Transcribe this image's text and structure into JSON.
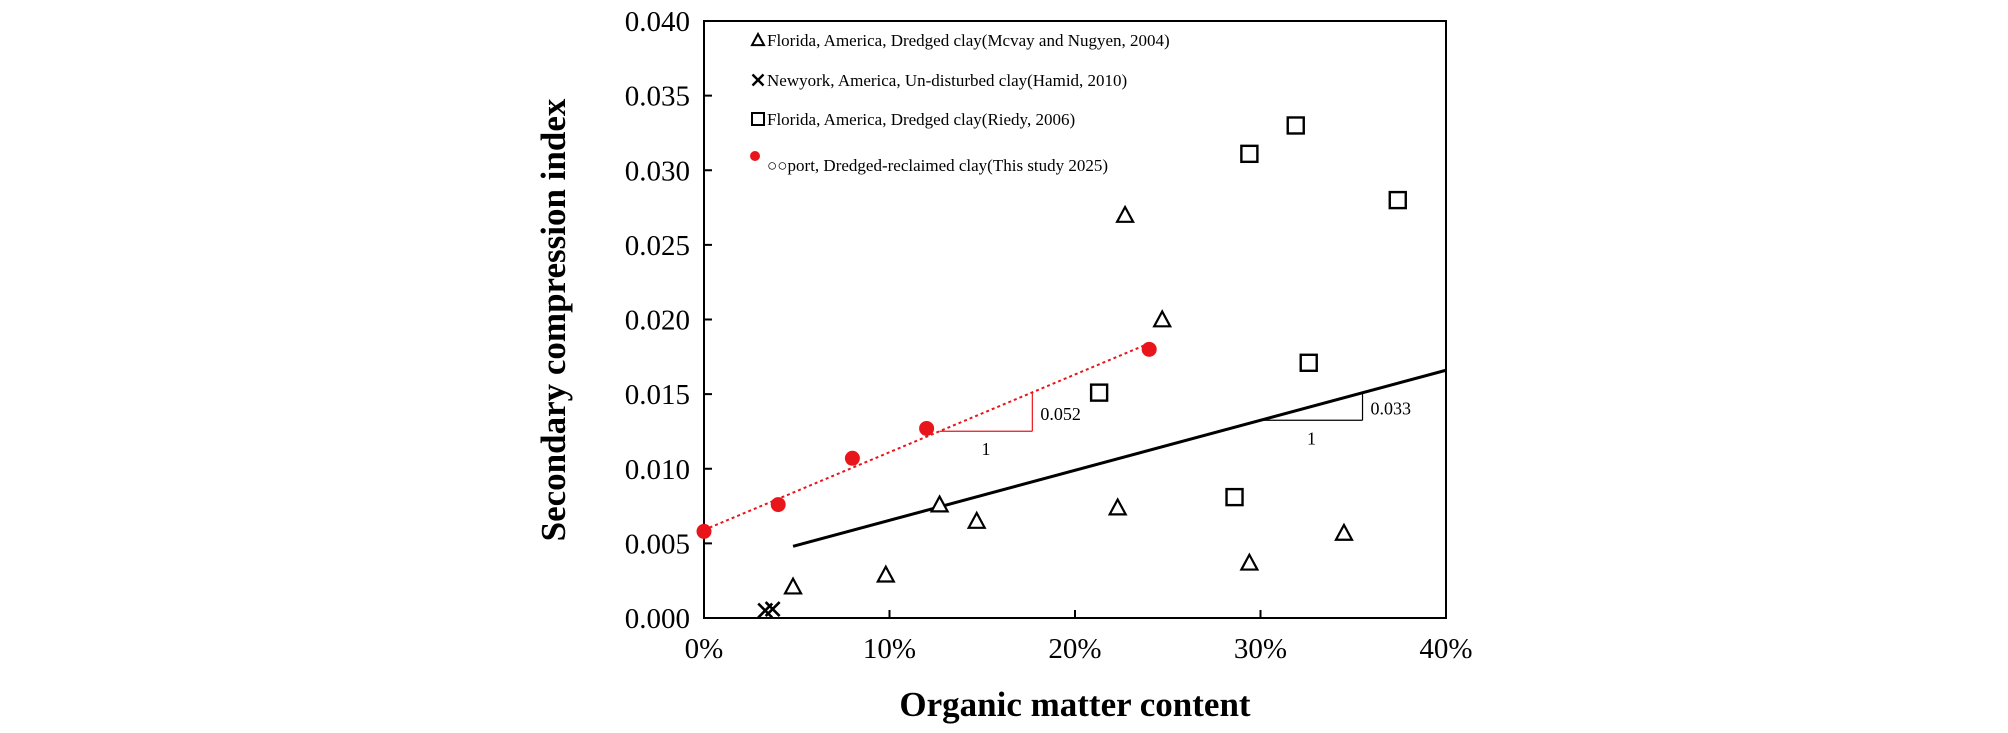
{
  "chart_data": {
    "type": "scatter",
    "xlabel": "Organic matter content",
    "ylabel": "Secondary compression index",
    "xlim": [
      0,
      0.4
    ],
    "ylim": [
      0,
      0.04
    ],
    "x_format": "percent",
    "x_ticks": [
      "0%",
      "10%",
      "20%",
      "30%",
      "40%"
    ],
    "y_ticks": [
      "0.000",
      "0.005",
      "0.010",
      "0.015",
      "0.020",
      "0.025",
      "0.030",
      "0.035",
      "0.040"
    ],
    "legend_position": "top-left",
    "series": [
      {
        "name": "Florida, America, Dredged clay(Mcvay and Nugyen, 2004)",
        "marker": "triangle",
        "color": "#000000",
        "points": [
          {
            "x": 0.048,
            "y": 0.0021
          },
          {
            "x": 0.098,
            "y": 0.0029
          },
          {
            "x": 0.127,
            "y": 0.0076
          },
          {
            "x": 0.147,
            "y": 0.0065
          },
          {
            "x": 0.223,
            "y": 0.0074
          },
          {
            "x": 0.227,
            "y": 0.027
          },
          {
            "x": 0.247,
            "y": 0.02
          },
          {
            "x": 0.294,
            "y": 0.0037
          },
          {
            "x": 0.345,
            "y": 0.0057
          }
        ]
      },
      {
        "name": "Newyork, America, Un-disturbed clay(Hamid, 2010)",
        "marker": "x",
        "color": "#000000",
        "points": [
          {
            "x": 0.033,
            "y": 0.0005
          },
          {
            "x": 0.037,
            "y": 0.0006
          }
        ]
      },
      {
        "name": "Florida, America, Dredged clay(Riedy, 2006)",
        "marker": "square",
        "color": "#000000",
        "points": [
          {
            "x": 0.213,
            "y": 0.0151
          },
          {
            "x": 0.286,
            "y": 0.0081
          },
          {
            "x": 0.294,
            "y": 0.0311
          },
          {
            "x": 0.319,
            "y": 0.033
          },
          {
            "x": 0.326,
            "y": 0.0171
          },
          {
            "x": 0.374,
            "y": 0.028
          }
        ]
      },
      {
        "name": "○○port, Dredged-reclaimed clay(This study 2025)",
        "marker": "circle",
        "color": "#e8161b",
        "points": [
          {
            "x": 0.0,
            "y": 0.0058
          },
          {
            "x": 0.04,
            "y": 0.0076
          },
          {
            "x": 0.08,
            "y": 0.0107
          },
          {
            "x": 0.12,
            "y": 0.0127
          },
          {
            "x": 0.24,
            "y": 0.018
          }
        ]
      }
    ],
    "trendlines": [
      {
        "style": "dotted",
        "color": "#e8161b",
        "from": {
          "x": 0.0,
          "y": 0.0059
        },
        "to": {
          "x": 0.24,
          "y": 0.0184
        },
        "slope_label": "0.052",
        "run_label": "1",
        "triangle": {
          "x1": 0.127,
          "x2": 0.177
        }
      },
      {
        "style": "solid",
        "color": "#000000",
        "from": {
          "x": 0.048,
          "y": 0.0048
        },
        "to": {
          "x": 0.4,
          "y": 0.0166
        },
        "slope_label": "0.033",
        "run_label": "1",
        "triangle": {
          "x1": 0.3,
          "x2": 0.355
        }
      }
    ]
  }
}
